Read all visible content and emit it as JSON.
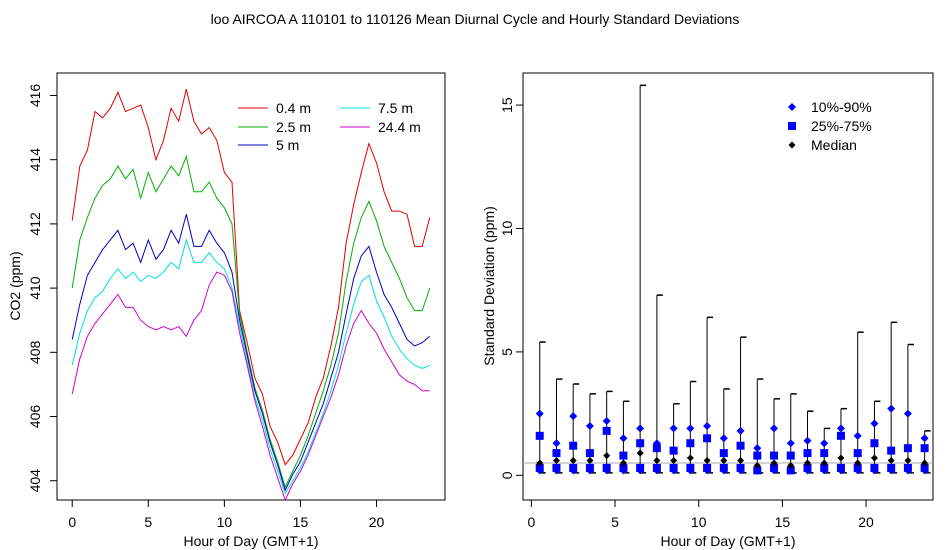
{
  "figure": {
    "title": "loo   AIRCOA A   110101 to 110126   Mean Diurnal Cycle and Hourly Standard Deviations"
  },
  "chart_data": [
    {
      "type": "line",
      "xlabel": "Hour of Day (GMT+1)",
      "ylabel": "CO2 (ppm)",
      "xlim": [
        -1,
        24.5
      ],
      "ylim": [
        403.4,
        416.7
      ],
      "xticks": [
        0,
        5,
        10,
        15,
        20
      ],
      "yticks": [
        404,
        406,
        408,
        410,
        412,
        414,
        416
      ],
      "grid": false,
      "legend_position": "top-right",
      "x": [
        0,
        0.5,
        1,
        1.5,
        2,
        2.5,
        3,
        3.5,
        4,
        4.5,
        5,
        5.5,
        6,
        6.5,
        7,
        7.5,
        8,
        8.5,
        9,
        9.5,
        10,
        10.5,
        11,
        11.5,
        12,
        12.5,
        13,
        13.5,
        14,
        14.5,
        15,
        15.5,
        16,
        16.5,
        17,
        17.5,
        18,
        18.5,
        19,
        19.5,
        20,
        20.5,
        21,
        21.5,
        22,
        22.5,
        23,
        23.5
      ],
      "series": [
        {
          "name": "0.4 m",
          "color": "#e00000",
          "values": [
            412.1,
            413.8,
            414.3,
            415.5,
            415.3,
            415.6,
            416.1,
            415.5,
            415.6,
            415.7,
            415.0,
            414.0,
            414.6,
            415.6,
            415.2,
            416.2,
            415.2,
            414.8,
            415.0,
            414.6,
            413.6,
            413.3,
            409.3,
            408.3,
            407.2,
            406.7,
            405.7,
            405.2,
            404.5,
            404.8,
            405.3,
            405.8,
            406.6,
            407.2,
            408.2,
            409.4,
            411.4,
            412.6,
            413.6,
            414.5,
            413.9,
            413.0,
            412.4,
            412.4,
            412.3,
            411.3,
            411.3,
            412.2
          ]
        },
        {
          "name": "2.5 m",
          "color": "#00b000",
          "values": [
            410.0,
            411.5,
            412.2,
            412.8,
            413.2,
            413.4,
            413.8,
            413.4,
            413.7,
            412.8,
            413.6,
            413.0,
            413.4,
            413.8,
            413.5,
            414.1,
            413.0,
            413.0,
            413.3,
            412.8,
            412.5,
            412.0,
            409.2,
            408.0,
            406.9,
            406.2,
            405.3,
            404.6,
            403.8,
            404.3,
            404.8,
            405.4,
            406.1,
            406.8,
            407.6,
            408.6,
            410.2,
            411.4,
            412.2,
            412.7,
            412.1,
            411.3,
            410.8,
            410.3,
            409.7,
            409.3,
            409.3,
            410.0
          ]
        },
        {
          "name": "5 m",
          "color": "#0000c0",
          "values": [
            408.4,
            409.5,
            410.4,
            410.8,
            411.2,
            411.5,
            411.8,
            411.2,
            411.4,
            410.8,
            411.5,
            410.9,
            411.2,
            411.8,
            411.4,
            412.3,
            411.3,
            411.3,
            411.8,
            411.4,
            411.1,
            410.5,
            409.0,
            407.9,
            406.8,
            406.1,
            405.2,
            404.5,
            403.7,
            404.2,
            404.6,
            405.2,
            405.8,
            406.4,
            407.2,
            408.0,
            409.2,
            410.3,
            411.0,
            411.3,
            410.5,
            409.8,
            409.4,
            408.9,
            408.4,
            408.2,
            408.3,
            408.5
          ]
        },
        {
          "name": "7.5 m",
          "color": "#00e0e0",
          "values": [
            407.6,
            408.6,
            409.3,
            409.7,
            409.9,
            410.3,
            410.6,
            410.3,
            410.5,
            410.2,
            410.4,
            410.3,
            410.5,
            410.8,
            410.6,
            411.5,
            410.8,
            410.8,
            411.1,
            410.8,
            410.6,
            410.0,
            408.8,
            407.7,
            406.6,
            405.9,
            405.0,
            404.3,
            403.6,
            404.0,
            404.4,
            404.9,
            405.5,
            406.1,
            406.8,
            407.6,
            408.6,
            409.5,
            410.2,
            410.4,
            409.6,
            409.1,
            408.5,
            408.1,
            407.8,
            407.6,
            407.5,
            407.6
          ]
        },
        {
          "name": "24.4 m",
          "color": "#d000d0",
          "values": [
            406.7,
            407.8,
            408.5,
            408.9,
            409.2,
            409.5,
            409.8,
            409.4,
            409.4,
            409.0,
            408.8,
            408.7,
            408.8,
            408.7,
            408.8,
            408.5,
            409.0,
            409.3,
            410.1,
            410.5,
            410.4,
            409.9,
            408.6,
            407.6,
            406.5,
            405.7,
            404.8,
            404.1,
            403.4,
            403.9,
            404.3,
            404.8,
            405.4,
            406.0,
            406.6,
            407.3,
            408.2,
            408.9,
            409.3,
            408.9,
            408.6,
            408.1,
            407.7,
            407.3,
            407.1,
            407.0,
            406.8,
            406.8
          ]
        }
      ]
    },
    {
      "type": "scatter",
      "xlabel": "Hour of Day (GMT+1)",
      "ylabel": "Standard Deviation (ppm)",
      "xlim": [
        -0.5,
        24
      ],
      "ylim": [
        -1,
        16.3
      ],
      "xticks": [
        0,
        5,
        10,
        15,
        20
      ],
      "yticks": [
        0,
        5,
        10,
        15
      ],
      "grid": false,
      "legend_position": "top-right",
      "reference_line_y": 0.5,
      "x": [
        0.5,
        1.5,
        2.5,
        3.5,
        4.5,
        5.5,
        6.5,
        7.5,
        8.5,
        9.5,
        10.5,
        11.5,
        12.5,
        13.5,
        14.5,
        15.5,
        16.5,
        17.5,
        18.5,
        19.5,
        20.5,
        21.5,
        22.5,
        23.5
      ],
      "min": [
        0.1,
        0.1,
        0.1,
        0.1,
        0.1,
        0.1,
        0.1,
        0.1,
        0.1,
        0.1,
        0.1,
        0.1,
        0.1,
        0.1,
        0.1,
        0.1,
        0.1,
        0.1,
        0.1,
        0.1,
        0.1,
        0.1,
        0.1,
        0.1
      ],
      "max": [
        5.4,
        3.9,
        3.7,
        3.3,
        3.4,
        3.0,
        15.8,
        7.3,
        2.9,
        3.8,
        6.4,
        3.5,
        5.6,
        3.9,
        3.1,
        3.3,
        2.6,
        1.9,
        2.7,
        5.8,
        3.0,
        6.2,
        5.3,
        1.8
      ],
      "series": [
        {
          "name": "10%-90%",
          "marker": "diamond",
          "color": "#0000ff",
          "low": [
            0.2,
            0.2,
            0.2,
            0.2,
            0.2,
            0.2,
            0.2,
            0.2,
            0.2,
            0.2,
            0.2,
            0.2,
            0.2,
            0.2,
            0.2,
            0.2,
            0.2,
            0.2,
            0.2,
            0.2,
            0.2,
            0.2,
            0.2,
            0.2
          ],
          "high": [
            2.5,
            1.3,
            2.4,
            2.0,
            2.2,
            1.5,
            1.9,
            1.3,
            1.9,
            1.9,
            2.0,
            1.5,
            1.8,
            1.1,
            1.9,
            1.3,
            1.4,
            1.3,
            1.9,
            1.6,
            2.1,
            2.7,
            2.5,
            1.5
          ]
        },
        {
          "name": "25%-75%",
          "marker": "square",
          "color": "#0000ff",
          "low": [
            0.3,
            0.3,
            0.3,
            0.3,
            0.3,
            0.3,
            0.3,
            0.3,
            0.3,
            0.3,
            0.3,
            0.3,
            0.3,
            0.2,
            0.3,
            0.2,
            0.3,
            0.3,
            0.3,
            0.3,
            0.3,
            0.3,
            0.3,
            0.3
          ],
          "high": [
            1.6,
            0.9,
            1.2,
            0.9,
            1.8,
            0.8,
            1.3,
            1.1,
            1.0,
            1.3,
            1.5,
            0.9,
            1.2,
            0.8,
            0.8,
            0.8,
            0.9,
            0.9,
            1.6,
            0.9,
            1.3,
            1.0,
            1.1,
            1.1
          ]
        },
        {
          "name": "Median",
          "marker": "diamond",
          "color": "#000000",
          "values": [
            0.5,
            0.6,
            0.6,
            0.6,
            0.8,
            0.5,
            0.9,
            0.6,
            0.6,
            0.7,
            0.6,
            0.6,
            0.6,
            0.4,
            0.5,
            0.4,
            0.5,
            0.5,
            0.7,
            0.5,
            0.7,
            0.6,
            0.6,
            0.5
          ]
        }
      ]
    }
  ]
}
